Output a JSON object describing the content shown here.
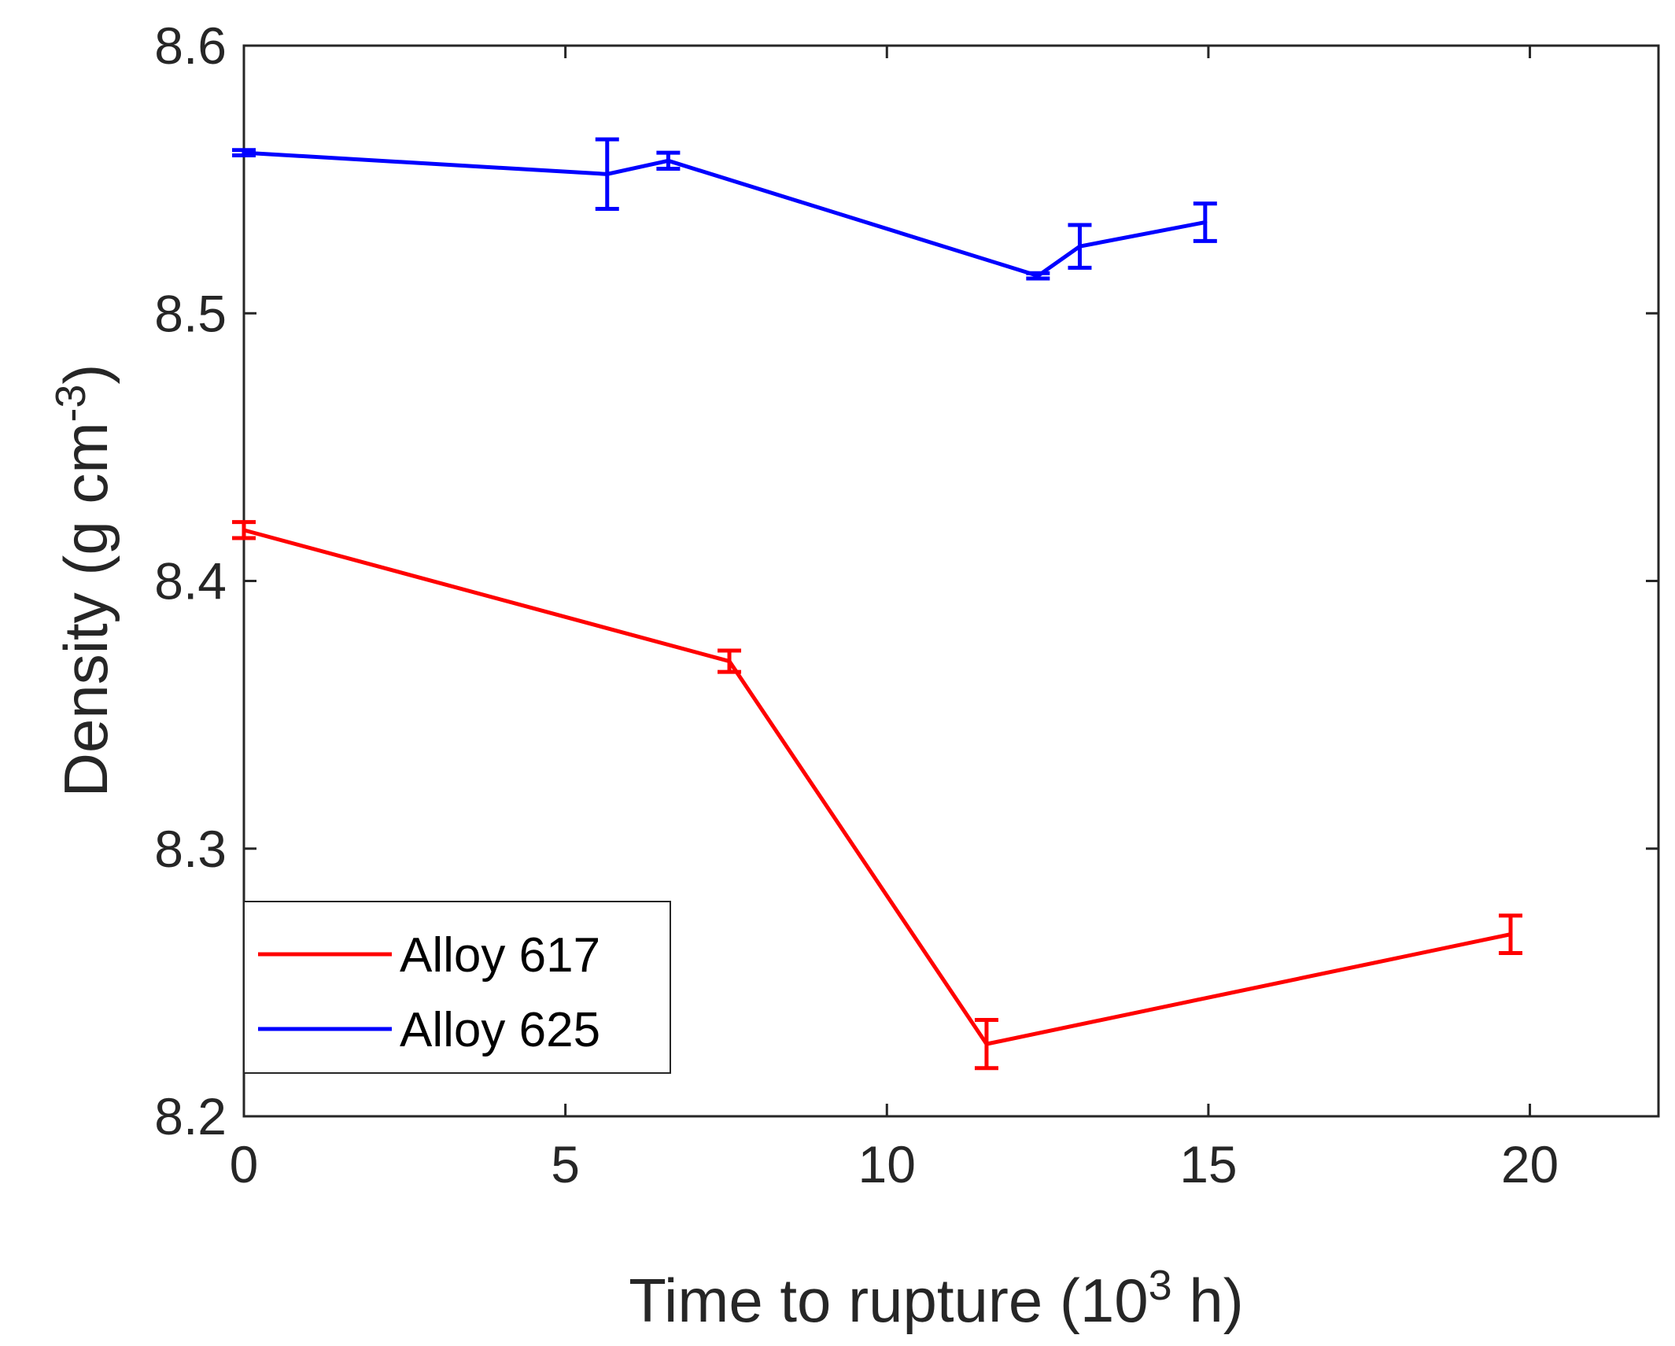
{
  "chart_data": {
    "type": "line",
    "xlabel": "Time to rupture (10",
    "xlabel_sup": "3",
    "xlabel_end": " h)",
    "ylabel": "Density (g cm",
    "ylabel_sup": "-3",
    "ylabel_end": ")",
    "xlim": [
      0,
      22
    ],
    "ylim": [
      8.2,
      8.6
    ],
    "x_ticks": [
      0,
      5,
      10,
      15,
      20
    ],
    "x_tick_labels": [
      "0",
      "5",
      "10",
      "15",
      "20"
    ],
    "y_ticks": [
      8.2,
      8.3,
      8.4,
      8.5,
      8.6
    ],
    "y_tick_labels": [
      "8.2",
      "8.3",
      "8.4",
      "8.5",
      "8.6"
    ],
    "legend_position": "bottom-left",
    "series": [
      {
        "name": "Alloy 617",
        "color": "#ff0000",
        "x": [
          0,
          7.55,
          11.55,
          19.7
        ],
        "y": [
          8.419,
          8.37,
          8.227,
          8.268
        ],
        "err": [
          0.003,
          0.004,
          0.009,
          0.007
        ]
      },
      {
        "name": "Alloy 625",
        "color": "#0000ff",
        "x": [
          0,
          5.65,
          6.6,
          12.35,
          13.0,
          14.95
        ],
        "y": [
          8.56,
          8.552,
          8.557,
          8.514,
          8.525,
          8.534
        ],
        "err": [
          0.001,
          0.013,
          0.003,
          0.001,
          0.008,
          0.007
        ]
      }
    ]
  }
}
